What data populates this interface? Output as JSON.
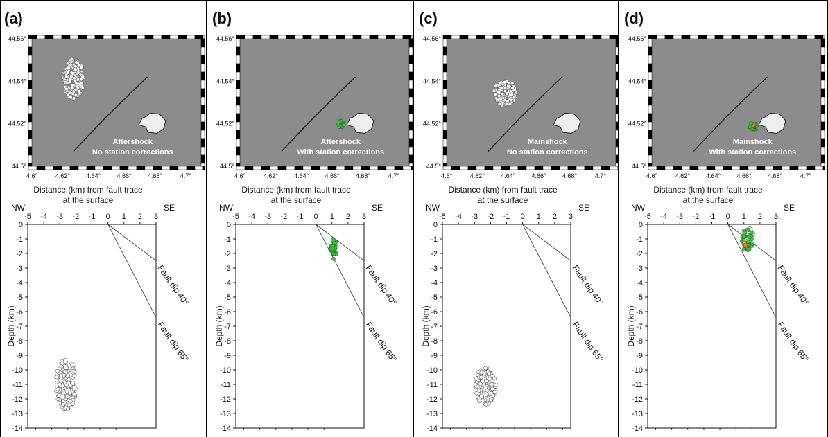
{
  "panels": [
    {
      "label": "(a)",
      "map": {
        "line1": "Aftershock",
        "line2": "No station corrections"
      },
      "chart_data": {
        "type": "scatter",
        "map": {
          "xticks": [
            "4.6°",
            "4.62°",
            "4.64°",
            "4.66°",
            "4.68°",
            "4.7°"
          ],
          "yticks": [
            "44.56°",
            "44.54°",
            "44.52°",
            "44.5°"
          ],
          "xlim": [
            4.6,
            4.71
          ],
          "ylim": [
            44.5,
            44.56
          ],
          "fault_trace": [
            [
              4.627,
              44.507
            ],
            [
              4.648,
              44.523
            ],
            [
              4.665,
              44.535
            ],
            [
              4.675,
              44.542
            ]
          ],
          "cluster": {
            "lon": 4.627,
            "lat": 44.541,
            "rlon": 0.007,
            "rlat": 0.0095,
            "color": "#ffffff",
            "n": 160
          },
          "hypocenter": false
        },
        "section": {
          "xlabel": "Distance (km) from fault trace",
          "xlabel2": "at the surface",
          "ylabel": "Depth (km)",
          "left_label": "NW",
          "right_label": "SE",
          "xticks": [
            -5,
            -4,
            -3,
            -2,
            -1,
            0,
            1,
            2,
            3
          ],
          "yticks": [
            0,
            -1,
            -2,
            -3,
            -4,
            -5,
            -6,
            -7,
            -8,
            -9,
            -10,
            -11,
            -12,
            -13,
            -14
          ],
          "xlim": [
            -5,
            3
          ],
          "ylim": [
            -14,
            0
          ],
          "dip_lines": [
            {
              "label": "Fault dip 40°",
              "end": [
                3,
                -2.5
              ]
            },
            {
              "label": "Fault dip 65°",
              "end": [
                3,
                -6.4
              ]
            }
          ],
          "cluster": {
            "x": -2.6,
            "y": -11.0,
            "rx": 0.65,
            "ry": 1.75,
            "color": "#ffffff",
            "n": 170
          },
          "hypocenter": false
        }
      }
    },
    {
      "label": "(b)",
      "map": {
        "line1": "Aftershock",
        "line2": "With station corrections"
      },
      "chart_data": {
        "type": "scatter",
        "map": {
          "xticks": [
            "4.6°",
            "4.62°",
            "4.64°",
            "4.66°",
            "4.68°",
            "4.7°"
          ],
          "yticks": [
            "44.56°",
            "44.54°",
            "44.52°",
            "44.5°"
          ],
          "xlim": [
            4.6,
            4.71
          ],
          "ylim": [
            44.5,
            44.56
          ],
          "fault_trace": [
            [
              4.627,
              44.507
            ],
            [
              4.648,
              44.523
            ],
            [
              4.665,
              44.535
            ],
            [
              4.675,
              44.542
            ]
          ],
          "cluster": {
            "lon": 4.6655,
            "lat": 44.5195,
            "rlon": 0.002,
            "rlat": 0.002,
            "color": "#33cc33",
            "n": 22
          },
          "hypocenter": false
        },
        "section": {
          "xlabel": "Distance (km) from fault trace",
          "xlabel2": "at the surface",
          "ylabel": "Depth (km)",
          "left_label": "NW",
          "right_label": "SE",
          "xticks": [
            -5,
            -4,
            -3,
            -2,
            -1,
            0,
            1,
            2,
            3
          ],
          "yticks": [
            0,
            -1,
            -2,
            -3,
            -4,
            -5,
            -6,
            -7,
            -8,
            -9,
            -10,
            -11,
            -12,
            -13,
            -14
          ],
          "xlim": [
            -5,
            3
          ],
          "ylim": [
            -14,
            0
          ],
          "dip_lines": [
            {
              "label": "Fault dip 40°",
              "end": [
                3,
                -2.5
              ]
            },
            {
              "label": "Fault dip 65°",
              "end": [
                3,
                -6.4
              ]
            }
          ],
          "cluster": {
            "x": 1.1,
            "y": -1.7,
            "rx": 0.22,
            "ry": 0.75,
            "color": "#33cc33",
            "n": 22
          },
          "hypocenter": false
        }
      }
    },
    {
      "label": "(c)",
      "map": {
        "line1": "Mainshock",
        "line2": "No station corrections"
      },
      "chart_data": {
        "type": "scatter",
        "map": {
          "xticks": [
            "4.6°",
            "4.62°",
            "4.64°",
            "4.66°",
            "4.68°",
            "4.7°"
          ],
          "yticks": [
            "44.56°",
            "44.54°",
            "44.52°",
            "44.5°"
          ],
          "xlim": [
            4.6,
            4.71
          ],
          "ylim": [
            44.5,
            44.56
          ],
          "fault_trace": [
            [
              4.627,
              44.507
            ],
            [
              4.648,
              44.523
            ],
            [
              4.665,
              44.535
            ],
            [
              4.675,
              44.542
            ]
          ],
          "cluster": {
            "lon": 4.638,
            "lat": 44.5345,
            "rlon": 0.0075,
            "rlat": 0.006,
            "color": "#ffffff",
            "n": 110
          },
          "hypocenter": false
        },
        "section": {
          "xlabel": "Distance (km) from fault trace",
          "xlabel2": "at the surface",
          "ylabel": "Depth (km)",
          "left_label": "NW",
          "right_label": "SE",
          "xticks": [
            -5,
            -4,
            -3,
            -2,
            -1,
            0,
            1,
            2,
            3
          ],
          "yticks": [
            0,
            -1,
            -2,
            -3,
            -4,
            -5,
            -6,
            -7,
            -8,
            -9,
            -10,
            -11,
            -12,
            -13,
            -14
          ],
          "xlim": [
            -5,
            3
          ],
          "ylim": [
            -14,
            0
          ],
          "dip_lines": [
            {
              "label": "Fault dip 40°",
              "end": [
                3,
                -2.5
              ]
            },
            {
              "label": "Fault dip 65°",
              "end": [
                3,
                -6.4
              ]
            }
          ],
          "cluster": {
            "x": -2.3,
            "y": -11.1,
            "rx": 0.65,
            "ry": 1.3,
            "color": "#ffffff",
            "n": 150
          },
          "hypocenter": false
        }
      }
    },
    {
      "label": "(d)",
      "map": {
        "line1": "Mainshock",
        "line2": "With station corrections"
      },
      "chart_data": {
        "type": "scatter",
        "map": {
          "xticks": [
            "4.6°",
            "4.62°",
            "4.64°",
            "4.66°",
            "4.68°",
            "4.7°"
          ],
          "yticks": [
            "44.56°",
            "44.54°",
            "44.52°",
            "44.5°"
          ],
          "xlim": [
            4.6,
            4.71
          ],
          "ylim": [
            44.5,
            44.56
          ],
          "fault_trace": [
            [
              4.627,
              44.507
            ],
            [
              4.648,
              44.523
            ],
            [
              4.665,
              44.535
            ],
            [
              4.675,
              44.542
            ]
          ],
          "cluster": {
            "lon": 4.666,
            "lat": 44.519,
            "rlon": 0.0025,
            "rlat": 0.0022,
            "color": "#33cc33",
            "n": 22
          },
          "hypocenter": {
            "lon": 4.666,
            "lat": 44.519,
            "color": "#f07820"
          }
        },
        "section": {
          "xlabel": "Distance (km) from fault trace",
          "xlabel2": "at the surface",
          "ylabel": "Depth (km)",
          "left_label": "NW",
          "right_label": "SE",
          "xticks": [
            -5,
            -4,
            -3,
            -2,
            -1,
            0,
            1,
            2,
            3
          ],
          "yticks": [
            0,
            -1,
            -2,
            -3,
            -4,
            -5,
            -6,
            -7,
            -8,
            -9,
            -10,
            -11,
            -12,
            -13,
            -14
          ],
          "xlim": [
            -5,
            3
          ],
          "ylim": [
            -14,
            0
          ],
          "dip_lines": [
            {
              "label": "Fault dip 40°",
              "end": [
                3,
                -2.5
              ]
            },
            {
              "label": "Fault dip 65°",
              "end": [
                3,
                -6.4
              ]
            }
          ],
          "cluster": {
            "x": 1.2,
            "y": -1.1,
            "rx": 0.4,
            "ry": 0.75,
            "color": "#33cc33",
            "n": 30,
            "white_n": 20
          },
          "hypocenter": {
            "x": 1.1,
            "y": -1.4,
            "color": "#f07820"
          }
        }
      }
    }
  ],
  "colors": {
    "map_background": "#8c8c8c",
    "lake_fill": "#eeeeee",
    "panel_border": "#000000"
  }
}
